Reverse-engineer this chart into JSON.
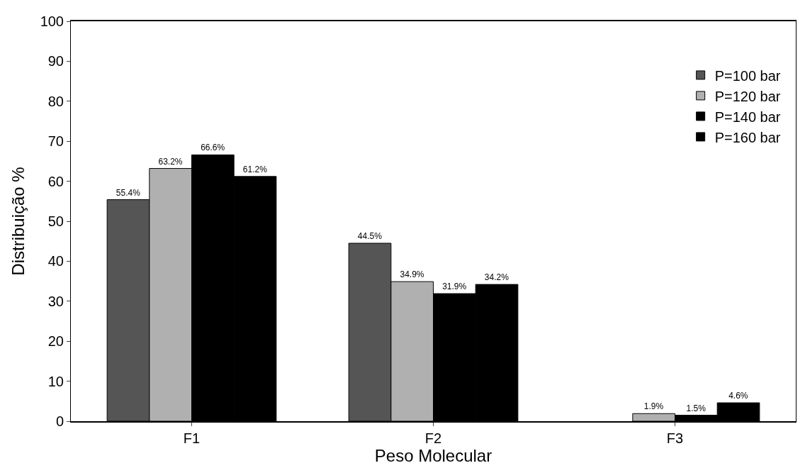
{
  "chart_data": {
    "type": "bar",
    "xlabel": "Peso Molecular",
    "ylabel": "Distribuição %",
    "categories": [
      "F1",
      "F2",
      "F3"
    ],
    "series": [
      {
        "name": "P=100 bar",
        "color": "#555555",
        "values": [
          55.4,
          44.5,
          null
        ],
        "value_labels": [
          "55.4%",
          "44.5%",
          null
        ]
      },
      {
        "name": "P=120 bar",
        "color": "#b0b0b0",
        "values": [
          63.2,
          34.9,
          1.9
        ],
        "value_labels": [
          "63.2%",
          "34.9%",
          "1.9%"
        ]
      },
      {
        "name": "P=140 bar",
        "color": "#000000",
        "values": [
          66.6,
          31.9,
          1.5
        ],
        "value_labels": [
          "66.6%",
          "31.9%",
          "1.5%"
        ]
      },
      {
        "name": "P=160 bar",
        "color": "#000000",
        "values": [
          61.2,
          34.2,
          4.6
        ],
        "value_labels": [
          "61.2%",
          "34.2%",
          "4.6%"
        ]
      }
    ],
    "ylim": [
      0,
      100
    ],
    "yticks": [
      0,
      10,
      20,
      30,
      40,
      50,
      60,
      70,
      80,
      90,
      100
    ],
    "legend": "top right"
  }
}
